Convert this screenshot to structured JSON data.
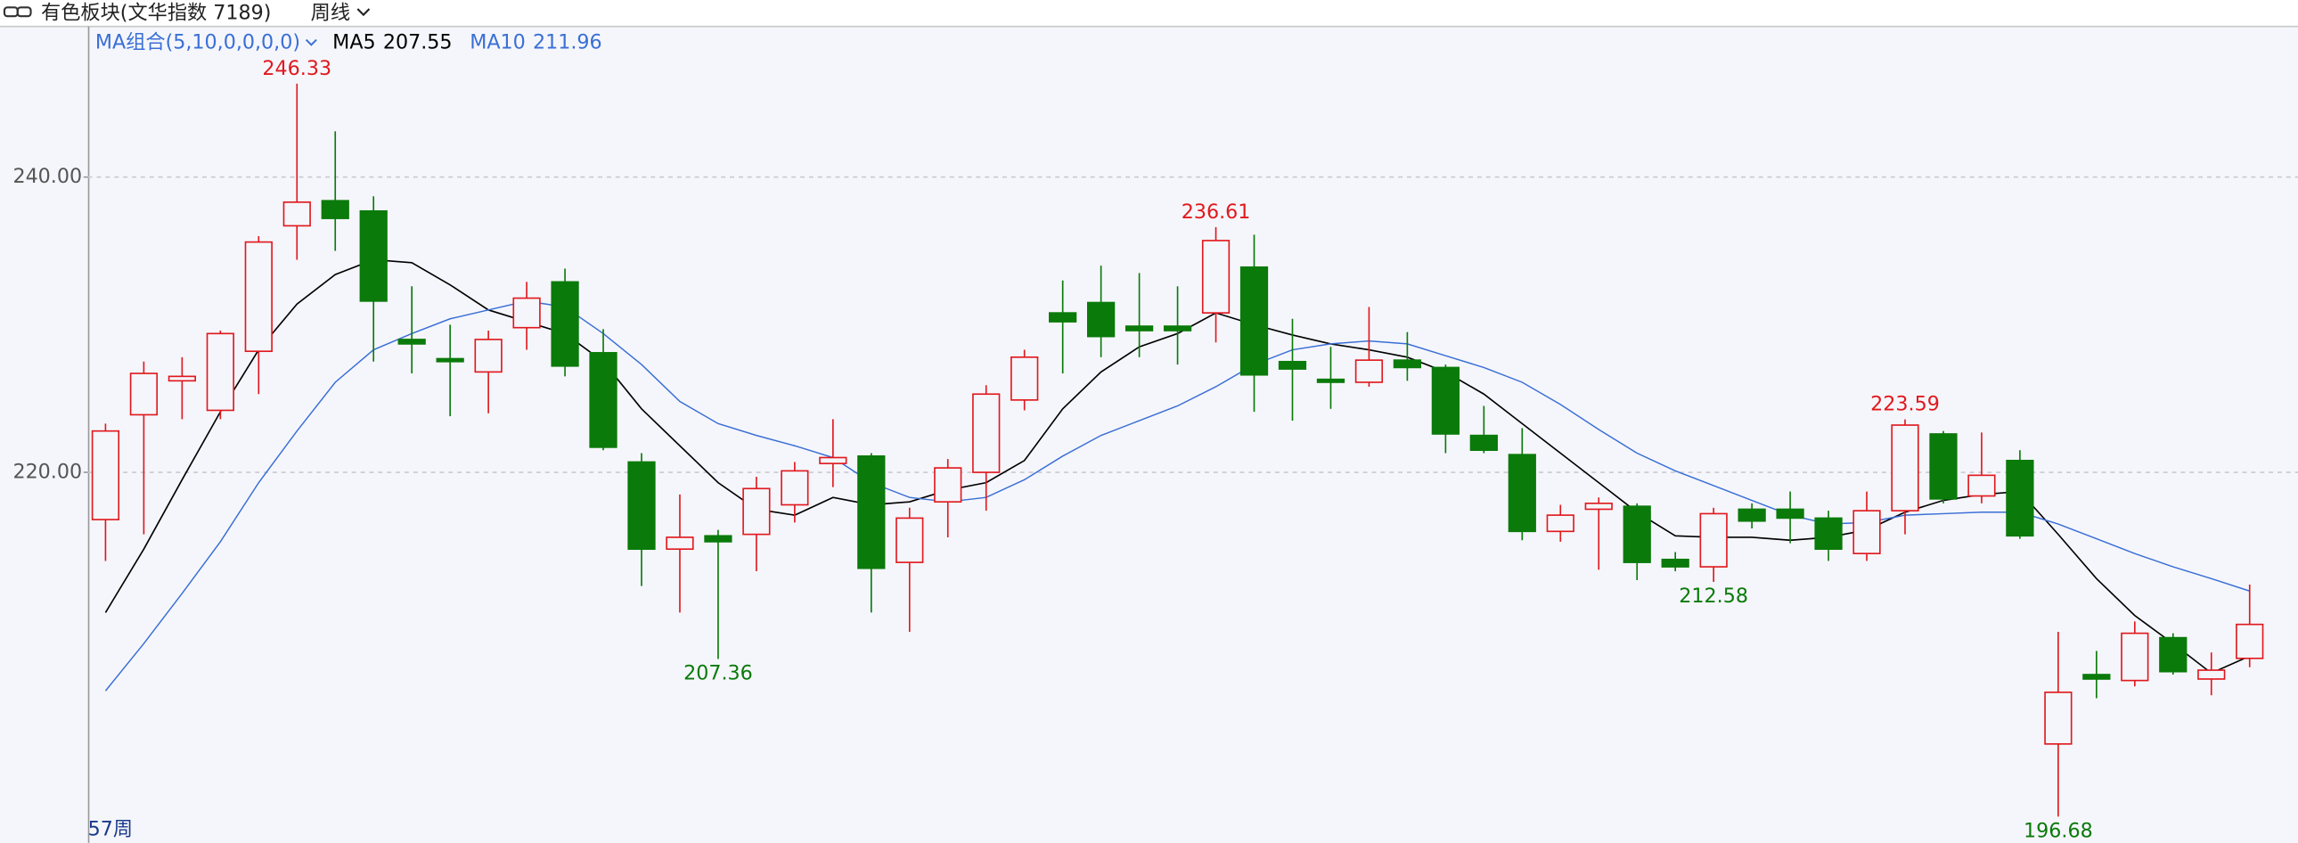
{
  "header": {
    "title": "有色板块(文华指数 7189)",
    "period": "周线"
  },
  "chart_data": {
    "type": "candlestick",
    "ma_label": "MA组合(5,10,0,0,0,0)",
    "bar_count_label": "57周",
    "up_color": "#e0191e",
    "down_color": "#0a7a0a",
    "ohlc": {
      "open": [
        216.8,
        223.9,
        226.2,
        224.2,
        228.2,
        236.7,
        238.4,
        237.7,
        229.0,
        227.7,
        226.8,
        229.8,
        232.9,
        228.1,
        220.7,
        214.8,
        215.7,
        215.8,
        217.8,
        220.6,
        221.1,
        213.9,
        218.0,
        220.0,
        224.9,
        230.8,
        231.5,
        229.9,
        229.9,
        230.8,
        233.9,
        227.5,
        226.3,
        226.1,
        227.6,
        227.1,
        222.5,
        221.2,
        216.0,
        217.5,
        217.7,
        214.1,
        213.6,
        217.5,
        217.5,
        216.9,
        214.5,
        217.4,
        222.6,
        218.4,
        220.8,
        201.6,
        206.3,
        205.9,
        208.8,
        206.0,
        207.4
      ],
      "high": [
        223.3,
        227.5,
        227.8,
        229.6,
        236.0,
        246.33,
        243.1,
        238.7,
        232.6,
        230.0,
        229.6,
        232.9,
        233.8,
        229.7,
        221.3,
        218.5,
        216.1,
        219.7,
        220.7,
        223.6,
        221.3,
        217.6,
        220.9,
        225.9,
        228.3,
        233.0,
        234.0,
        233.5,
        232.6,
        236.61,
        236.1,
        230.4,
        228.5,
        231.2,
        229.5,
        227.3,
        224.5,
        223.0,
        217.8,
        218.3,
        217.9,
        214.6,
        217.6,
        217.9,
        218.7,
        217.4,
        218.7,
        223.59,
        222.8,
        222.7,
        221.5,
        209.2,
        207.9,
        209.9,
        209.1,
        207.8,
        212.4
      ],
      "low": [
        214.0,
        215.8,
        223.6,
        223.6,
        225.3,
        234.4,
        235.0,
        227.5,
        226.7,
        223.8,
        224.0,
        228.3,
        226.5,
        221.5,
        212.3,
        210.5,
        207.36,
        213.3,
        216.6,
        219.0,
        210.5,
        209.2,
        215.6,
        217.4,
        224.2,
        226.7,
        227.8,
        227.8,
        227.3,
        228.8,
        224.1,
        223.5,
        224.3,
        225.8,
        226.2,
        221.3,
        221.3,
        215.4,
        215.3,
        213.4,
        212.7,
        213.3,
        212.58,
        216.2,
        215.2,
        214.0,
        214.0,
        215.8,
        217.9,
        217.9,
        215.5,
        196.68,
        204.7,
        205.5,
        206.3,
        204.9,
        206.8
      ],
      "close": [
        222.8,
        226.7,
        226.5,
        229.4,
        235.6,
        238.3,
        237.2,
        231.6,
        228.7,
        227.5,
        229.0,
        231.8,
        227.2,
        221.7,
        214.8,
        215.6,
        215.3,
        218.9,
        220.1,
        221.0,
        213.5,
        216.9,
        220.3,
        225.3,
        227.8,
        230.2,
        229.2,
        229.6,
        229.6,
        235.7,
        226.6,
        227.0,
        226.1,
        227.6,
        227.1,
        222.6,
        221.5,
        216.0,
        217.1,
        217.9,
        213.9,
        213.6,
        217.2,
        216.7,
        216.9,
        214.8,
        217.4,
        223.2,
        218.2,
        219.8,
        215.7,
        205.1,
        206.0,
        209.1,
        206.5,
        206.6,
        209.7
      ]
    },
    "series": [
      {
        "name": "MA5",
        "color": "#000000",
        "values": [
          210.5,
          214.8,
          219.5,
          224.1,
          228.3,
          231.4,
          233.4,
          234.4,
          234.2,
          232.7,
          231.0,
          230.2,
          229.4,
          227.5,
          224.3,
          221.8,
          219.3,
          217.5,
          217.1,
          218.3,
          217.8,
          218.0,
          218.8,
          219.3,
          220.8,
          224.3,
          226.8,
          228.5,
          229.4,
          230.8,
          230.0,
          229.3,
          228.7,
          228.3,
          227.8,
          226.8,
          225.3,
          223.3,
          221.3,
          219.3,
          217.3,
          215.7,
          215.6,
          215.6,
          215.4,
          215.6,
          216.1,
          217.3,
          218.1,
          218.5,
          218.7,
          215.8,
          212.8,
          210.3,
          208.4,
          206.4,
          207.55
        ]
      },
      {
        "name": "MA10",
        "color": "#3a6fd6",
        "values": [
          205.2,
          208.4,
          211.8,
          215.3,
          219.3,
          222.8,
          226.1,
          228.3,
          229.4,
          230.4,
          231.0,
          231.6,
          231.2,
          229.4,
          227.3,
          224.8,
          223.3,
          222.5,
          221.8,
          221.0,
          219.3,
          218.3,
          218.0,
          218.3,
          219.5,
          221.1,
          222.5,
          223.5,
          224.5,
          225.8,
          227.3,
          228.3,
          228.7,
          228.9,
          228.7,
          227.9,
          227.1,
          226.1,
          224.6,
          222.9,
          221.3,
          220.1,
          219.1,
          218.1,
          217.1,
          216.5,
          216.6,
          217.1,
          217.2,
          217.3,
          217.3,
          216.5,
          215.5,
          214.5,
          213.6,
          212.8,
          211.96
        ]
      }
    ],
    "ylim": [
      194.9,
      250.2
    ],
    "yticks": [
      {
        "value": 220,
        "label": "220.00"
      },
      {
        "value": 240,
        "label": "240.00"
      }
    ],
    "grid": true
  }
}
